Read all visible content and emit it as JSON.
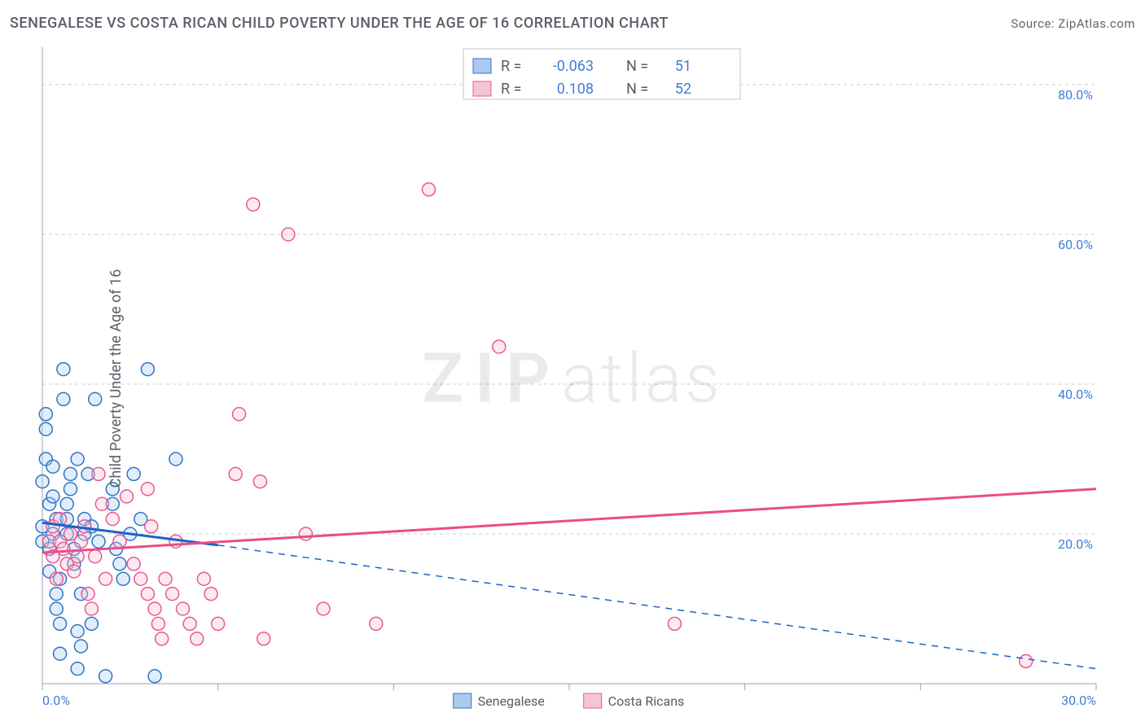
{
  "header": {
    "title": "SENEGALESE VS COSTA RICAN CHILD POVERTY UNDER THE AGE OF 16 CORRELATION CHART",
    "source_prefix": "Source: ",
    "source": "ZipAtlas.com"
  },
  "watermark": {
    "zip": "ZIP",
    "atlas": "atlas"
  },
  "y_axis": {
    "label": "Child Poverty Under the Age of 16"
  },
  "chart": {
    "type": "scatter",
    "x_min": 0,
    "x_max": 30,
    "y_min": 0,
    "y_max": 85,
    "background_color": "#ffffff",
    "grid_color": "#c9ced6",
    "axis_color": "#9aa1ad",
    "tick_label_color": "#3f7ed6",
    "y_ticks": [
      {
        "v": 20,
        "label": "20.0%"
      },
      {
        "v": 40,
        "label": "40.0%"
      },
      {
        "v": 60,
        "label": "60.0%"
      },
      {
        "v": 80,
        "label": "80.0%"
      }
    ],
    "x_ticks": [
      {
        "v": 0,
        "label": "0.0%"
      },
      {
        "v": 5,
        "label": ""
      },
      {
        "v": 10,
        "label": ""
      },
      {
        "v": 15,
        "label": ""
      },
      {
        "v": 20,
        "label": ""
      },
      {
        "v": 25,
        "label": ""
      },
      {
        "v": 30,
        "label": "30.0%"
      }
    ],
    "marker_radius": 8,
    "series": [
      {
        "name": "Senegalese",
        "fill": "#a9caee",
        "stroke": "#2f74c6",
        "trend_color": "#1e63c8",
        "r_label": "R =",
        "r_value": "-0.063",
        "n_label": "N =",
        "n_value": "51",
        "trend_solid": {
          "x1": 0,
          "y1": 21.5,
          "x2": 5,
          "y2": 18.5
        },
        "trend_dash": {
          "x1": 5,
          "y1": 18.5,
          "x2": 30,
          "y2": 2
        },
        "points": [
          [
            0.0,
            19
          ],
          [
            0.0,
            21
          ],
          [
            0.0,
            27
          ],
          [
            0.1,
            30
          ],
          [
            0.1,
            36
          ],
          [
            0.1,
            34
          ],
          [
            0.2,
            24
          ],
          [
            0.2,
            18
          ],
          [
            0.2,
            15
          ],
          [
            0.3,
            20
          ],
          [
            0.3,
            25
          ],
          [
            0.3,
            29
          ],
          [
            0.4,
            22
          ],
          [
            0.4,
            12
          ],
          [
            0.4,
            10
          ],
          [
            0.5,
            4
          ],
          [
            0.5,
            8
          ],
          [
            0.5,
            14
          ],
          [
            0.6,
            42
          ],
          [
            0.6,
            38
          ],
          [
            0.7,
            20
          ],
          [
            0.7,
            22
          ],
          [
            0.7,
            24
          ],
          [
            0.8,
            26
          ],
          [
            0.8,
            28
          ],
          [
            0.9,
            18
          ],
          [
            0.9,
            16
          ],
          [
            1.0,
            30
          ],
          [
            1.0,
            7
          ],
          [
            1.1,
            5
          ],
          [
            1.1,
            12
          ],
          [
            1.2,
            20
          ],
          [
            1.2,
            22
          ],
          [
            1.3,
            28
          ],
          [
            1.4,
            21
          ],
          [
            1.5,
            38
          ],
          [
            1.6,
            19
          ],
          [
            1.8,
            1
          ],
          [
            2.0,
            26
          ],
          [
            2.0,
            24
          ],
          [
            2.1,
            18
          ],
          [
            2.2,
            16
          ],
          [
            2.3,
            14
          ],
          [
            2.5,
            20
          ],
          [
            2.6,
            28
          ],
          [
            2.8,
            22
          ],
          [
            3.0,
            42
          ],
          [
            3.2,
            1
          ],
          [
            3.8,
            30
          ],
          [
            1.0,
            2
          ],
          [
            1.4,
            8
          ]
        ]
      },
      {
        "name": "Costa Ricans",
        "fill": "#f7c4d3",
        "stroke": "#e95893",
        "trend_color": "#ea4c89",
        "r_label": "R =",
        "r_value": "0.108",
        "n_label": "N =",
        "n_value": "52",
        "trend_solid": {
          "x1": 0,
          "y1": 17.5,
          "x2": 30,
          "y2": 26
        },
        "trend_dash": null,
        "points": [
          [
            0.2,
            19
          ],
          [
            0.3,
            17
          ],
          [
            0.3,
            21
          ],
          [
            0.4,
            14
          ],
          [
            0.5,
            19
          ],
          [
            0.5,
            22
          ],
          [
            0.6,
            18
          ],
          [
            0.7,
            16
          ],
          [
            0.8,
            20
          ],
          [
            0.9,
            15
          ],
          [
            1.0,
            17
          ],
          [
            1.1,
            19
          ],
          [
            1.2,
            21
          ],
          [
            1.3,
            12
          ],
          [
            1.4,
            10
          ],
          [
            1.5,
            17
          ],
          [
            1.6,
            28
          ],
          [
            1.7,
            24
          ],
          [
            1.8,
            14
          ],
          [
            2.0,
            22
          ],
          [
            2.2,
            19
          ],
          [
            2.4,
            25
          ],
          [
            2.6,
            16
          ],
          [
            2.8,
            14
          ],
          [
            3.0,
            12
          ],
          [
            3.0,
            26
          ],
          [
            3.1,
            21
          ],
          [
            3.2,
            10
          ],
          [
            3.3,
            8
          ],
          [
            3.4,
            6
          ],
          [
            3.5,
            14
          ],
          [
            3.7,
            12
          ],
          [
            3.8,
            19
          ],
          [
            4.0,
            10
          ],
          [
            4.2,
            8
          ],
          [
            4.4,
            6
          ],
          [
            4.6,
            14
          ],
          [
            4.8,
            12
          ],
          [
            5.0,
            8
          ],
          [
            5.5,
            28
          ],
          [
            5.6,
            36
          ],
          [
            6.0,
            64
          ],
          [
            6.2,
            27
          ],
          [
            6.3,
            6
          ],
          [
            7.0,
            60
          ],
          [
            7.5,
            20
          ],
          [
            8.0,
            10
          ],
          [
            9.5,
            8
          ],
          [
            11.0,
            66
          ],
          [
            13.0,
            45
          ],
          [
            18.0,
            8
          ],
          [
            28.0,
            3
          ]
        ]
      }
    ],
    "bottom_legend": {
      "items": [
        {
          "label": "Senegalese",
          "fill": "#a9caee",
          "stroke": "#2f74c6"
        },
        {
          "label": "Costa Ricans",
          "fill": "#f7c4d3",
          "stroke": "#e95893"
        }
      ]
    }
  }
}
